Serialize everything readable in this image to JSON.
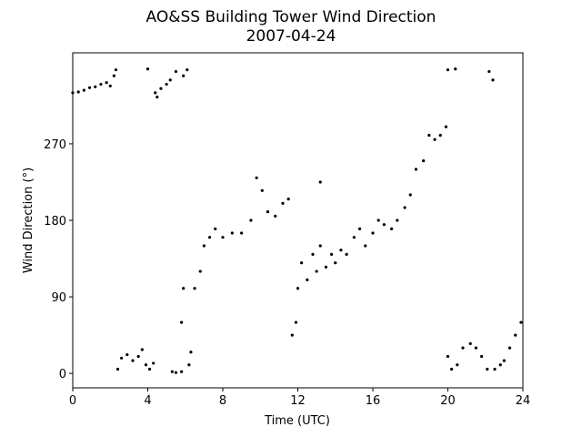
{
  "chart_data": {
    "type": "scatter",
    "title": "AO&SS Building Tower Wind Direction",
    "subtitle": "2007-04-24",
    "x_label": "Time (UTC)",
    "y_label": "Wind Direction (°)",
    "color": "#000000",
    "xlim": [
      0,
      24
    ],
    "xticks": [
      0,
      4,
      8,
      12,
      16,
      20,
      24
    ],
    "ylim": [
      -17,
      377
    ],
    "yticks": [
      0,
      90,
      180,
      270
    ],
    "x": [
      0,
      0.3,
      0.6,
      0.9,
      1.2,
      1.5,
      1.8,
      2.0,
      2.2,
      2.3,
      2.4,
      2.6,
      2.9,
      3.2,
      3.5,
      3.7,
      3.9,
      4.1,
      4.3,
      4.0,
      4.4,
      4.5,
      4.7,
      5.0,
      5.2,
      5.5,
      5.9,
      6.1,
      5.3,
      5.5,
      5.8,
      6.2,
      6.3,
      5.8,
      5.9,
      6.5,
      6.8,
      7.0,
      7.3,
      7.6,
      8.0,
      8.5,
      9.0,
      9.5,
      9.8,
      10.1,
      10.4,
      10.8,
      11.2,
      11.5,
      11.7,
      11.9,
      12.0,
      12.2,
      12.5,
      12.8,
      13.0,
      13.2,
      13.5,
      13.8,
      14.0,
      14.3,
      14.6,
      15.0,
      15.3,
      15.6,
      16.0,
      16.3,
      16.6,
      17.0,
      17.3,
      17.7,
      18.0,
      18.3,
      18.7,
      19.0,
      19.3,
      19.6,
      19.9,
      13.2,
      20.0,
      20.4,
      20.0,
      20.2,
      20.5,
      20.8,
      21.2,
      21.5,
      21.8,
      22.1,
      22.2,
      22.4,
      22.5,
      22.8,
      23.0,
      23.3,
      23.6,
      23.9
    ],
    "values": [
      330,
      331,
      333,
      336,
      337,
      340,
      342,
      338,
      350,
      357,
      5,
      18,
      22,
      15,
      20,
      28,
      10,
      5,
      12,
      358,
      330,
      325,
      335,
      340,
      345,
      355,
      350,
      357,
      2,
      1,
      2,
      10,
      25,
      60,
      100,
      100,
      120,
      150,
      160,
      170,
      160,
      165,
      165,
      180,
      230,
      215,
      190,
      185,
      200,
      205,
      45,
      60,
      100,
      130,
      110,
      140,
      120,
      150,
      125,
      140,
      130,
      145,
      140,
      160,
      170,
      150,
      165,
      180,
      175,
      170,
      180,
      195,
      210,
      240,
      250,
      280,
      275,
      280,
      290,
      225,
      357,
      358,
      20,
      5,
      10,
      30,
      35,
      30,
      20,
      5,
      355,
      345,
      5,
      10,
      15,
      30,
      45,
      60
    ]
  }
}
